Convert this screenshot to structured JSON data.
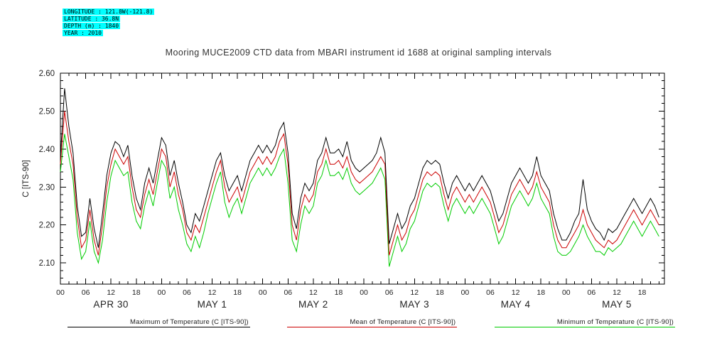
{
  "header_info": {
    "lines": [
      "LONGITUDE : 121.8W(-121.8)",
      "LATITUDE : 36.8N",
      "DEPTH (m) : 1840",
      "YEAR : 2010"
    ],
    "highlight_color": "#00ffff"
  },
  "title": "Mooring MUCE2009 CTD data from MBARI instrument id 1688 at original sampling intervals",
  "chart_data": {
    "type": "line",
    "title": "Mooring MUCE2009 CTD data from MBARI instrument id 1688 at original sampling intervals",
    "xlabel": "",
    "ylabel": "C [ITS-90]",
    "ylim": [
      2.044,
      2.6
    ],
    "y_ticks": [
      2.1,
      2.2,
      2.3,
      2.4,
      2.5,
      2.6
    ],
    "y_minor_step": 0.02,
    "x_unit": "hours since 2010-04-30 00:00",
    "xlim_hours": [
      0,
      143.3
    ],
    "x_start_hour": 0,
    "x_step_hours": 1,
    "x_major_step_hours": 6,
    "x_minor_step_hours": 2,
    "hour_tick_labels": [
      "00",
      "06",
      "12",
      "18"
    ],
    "day_labels": [
      {
        "label": "APR 30",
        "noon_hour": 12
      },
      {
        "label": "MAY 1",
        "noon_hour": 36
      },
      {
        "label": "MAY 2",
        "noon_hour": 60
      },
      {
        "label": "MAY 3",
        "noon_hour": 84
      },
      {
        "label": "MAY 4",
        "noon_hour": 108
      },
      {
        "label": "MAY 5",
        "noon_hour": 132
      }
    ],
    "grid": false,
    "legend_position": "bottom",
    "series": [
      {
        "name": "Maximum of Temperature (C [ITS-90])",
        "color": "#000000",
        "values": [
          2.38,
          2.56,
          2.46,
          2.39,
          2.25,
          2.17,
          2.18,
          2.27,
          2.19,
          2.14,
          2.23,
          2.33,
          2.39,
          2.42,
          2.41,
          2.38,
          2.41,
          2.33,
          2.27,
          2.24,
          2.31,
          2.35,
          2.31,
          2.37,
          2.43,
          2.41,
          2.33,
          2.37,
          2.31,
          2.26,
          2.2,
          2.18,
          2.23,
          2.21,
          2.25,
          2.29,
          2.33,
          2.37,
          2.39,
          2.33,
          2.29,
          2.31,
          2.33,
          2.29,
          2.33,
          2.37,
          2.39,
          2.41,
          2.39,
          2.41,
          2.39,
          2.41,
          2.45,
          2.47,
          2.39,
          2.23,
          2.19,
          2.27,
          2.31,
          2.29,
          2.31,
          2.37,
          2.39,
          2.43,
          2.39,
          2.39,
          2.4,
          2.38,
          2.42,
          2.37,
          2.35,
          2.34,
          2.35,
          2.36,
          2.37,
          2.39,
          2.43,
          2.39,
          2.15,
          2.19,
          2.23,
          2.19,
          2.21,
          2.25,
          2.27,
          2.31,
          2.35,
          2.37,
          2.36,
          2.37,
          2.36,
          2.31,
          2.27,
          2.31,
          2.33,
          2.31,
          2.29,
          2.31,
          2.29,
          2.31,
          2.33,
          2.31,
          2.29,
          2.25,
          2.21,
          2.23,
          2.27,
          2.31,
          2.33,
          2.35,
          2.33,
          2.31,
          2.33,
          2.38,
          2.33,
          2.31,
          2.29,
          2.23,
          2.19,
          2.16,
          2.16,
          2.18,
          2.21,
          2.23,
          2.32,
          2.24,
          2.21,
          2.19,
          2.18,
          2.16,
          2.19,
          2.18,
          2.19,
          2.21,
          2.23,
          2.25,
          2.27,
          2.25,
          2.23,
          2.25,
          2.27,
          2.25,
          2.22
        ]
      },
      {
        "name": "Mean of Temperature (C [ITS-90])",
        "color": "#cc0000",
        "values": [
          2.36,
          2.5,
          2.42,
          2.36,
          2.22,
          2.14,
          2.16,
          2.24,
          2.16,
          2.12,
          2.2,
          2.3,
          2.36,
          2.4,
          2.38,
          2.36,
          2.38,
          2.3,
          2.24,
          2.22,
          2.28,
          2.32,
          2.28,
          2.34,
          2.4,
          2.38,
          2.3,
          2.34,
          2.28,
          2.24,
          2.18,
          2.16,
          2.2,
          2.18,
          2.22,
          2.26,
          2.3,
          2.34,
          2.37,
          2.3,
          2.26,
          2.28,
          2.3,
          2.26,
          2.3,
          2.34,
          2.36,
          2.38,
          2.36,
          2.38,
          2.36,
          2.38,
          2.42,
          2.44,
          2.36,
          2.2,
          2.16,
          2.24,
          2.28,
          2.26,
          2.28,
          2.34,
          2.36,
          2.4,
          2.36,
          2.36,
          2.37,
          2.35,
          2.38,
          2.34,
          2.32,
          2.31,
          2.32,
          2.33,
          2.34,
          2.36,
          2.38,
          2.36,
          2.12,
          2.16,
          2.2,
          2.16,
          2.18,
          2.22,
          2.24,
          2.28,
          2.32,
          2.34,
          2.33,
          2.34,
          2.33,
          2.28,
          2.24,
          2.28,
          2.3,
          2.28,
          2.26,
          2.28,
          2.26,
          2.28,
          2.3,
          2.28,
          2.26,
          2.22,
          2.18,
          2.2,
          2.24,
          2.28,
          2.3,
          2.32,
          2.3,
          2.28,
          2.3,
          2.34,
          2.3,
          2.28,
          2.26,
          2.2,
          2.16,
          2.14,
          2.14,
          2.16,
          2.18,
          2.2,
          2.24,
          2.2,
          2.18,
          2.16,
          2.15,
          2.14,
          2.16,
          2.15,
          2.16,
          2.18,
          2.2,
          2.22,
          2.24,
          2.22,
          2.2,
          2.22,
          2.24,
          2.22,
          2.2
        ]
      },
      {
        "name": "Minimum of Temperature (C [ITS-90])",
        "color": "#00cc00",
        "values": [
          2.34,
          2.44,
          2.38,
          2.32,
          2.18,
          2.11,
          2.13,
          2.21,
          2.13,
          2.1,
          2.16,
          2.26,
          2.33,
          2.37,
          2.35,
          2.33,
          2.34,
          2.26,
          2.21,
          2.19,
          2.25,
          2.29,
          2.25,
          2.31,
          2.37,
          2.35,
          2.27,
          2.3,
          2.24,
          2.2,
          2.15,
          2.13,
          2.17,
          2.14,
          2.18,
          2.23,
          2.27,
          2.31,
          2.34,
          2.26,
          2.22,
          2.25,
          2.27,
          2.23,
          2.27,
          2.31,
          2.33,
          2.35,
          2.33,
          2.35,
          2.33,
          2.35,
          2.38,
          2.4,
          2.31,
          2.16,
          2.13,
          2.2,
          2.25,
          2.23,
          2.25,
          2.31,
          2.33,
          2.37,
          2.33,
          2.33,
          2.34,
          2.32,
          2.35,
          2.31,
          2.29,
          2.28,
          2.29,
          2.3,
          2.31,
          2.33,
          2.35,
          2.32,
          2.09,
          2.13,
          2.17,
          2.13,
          2.15,
          2.19,
          2.21,
          2.25,
          2.29,
          2.31,
          2.3,
          2.31,
          2.3,
          2.25,
          2.21,
          2.25,
          2.27,
          2.25,
          2.23,
          2.25,
          2.23,
          2.25,
          2.27,
          2.25,
          2.23,
          2.19,
          2.15,
          2.17,
          2.21,
          2.25,
          2.27,
          2.29,
          2.27,
          2.25,
          2.27,
          2.31,
          2.27,
          2.25,
          2.23,
          2.17,
          2.13,
          2.12,
          2.12,
          2.13,
          2.15,
          2.17,
          2.2,
          2.17,
          2.15,
          2.13,
          2.13,
          2.12,
          2.14,
          2.13,
          2.14,
          2.15,
          2.17,
          2.19,
          2.21,
          2.19,
          2.17,
          2.19,
          2.21,
          2.19,
          2.17
        ]
      }
    ]
  }
}
